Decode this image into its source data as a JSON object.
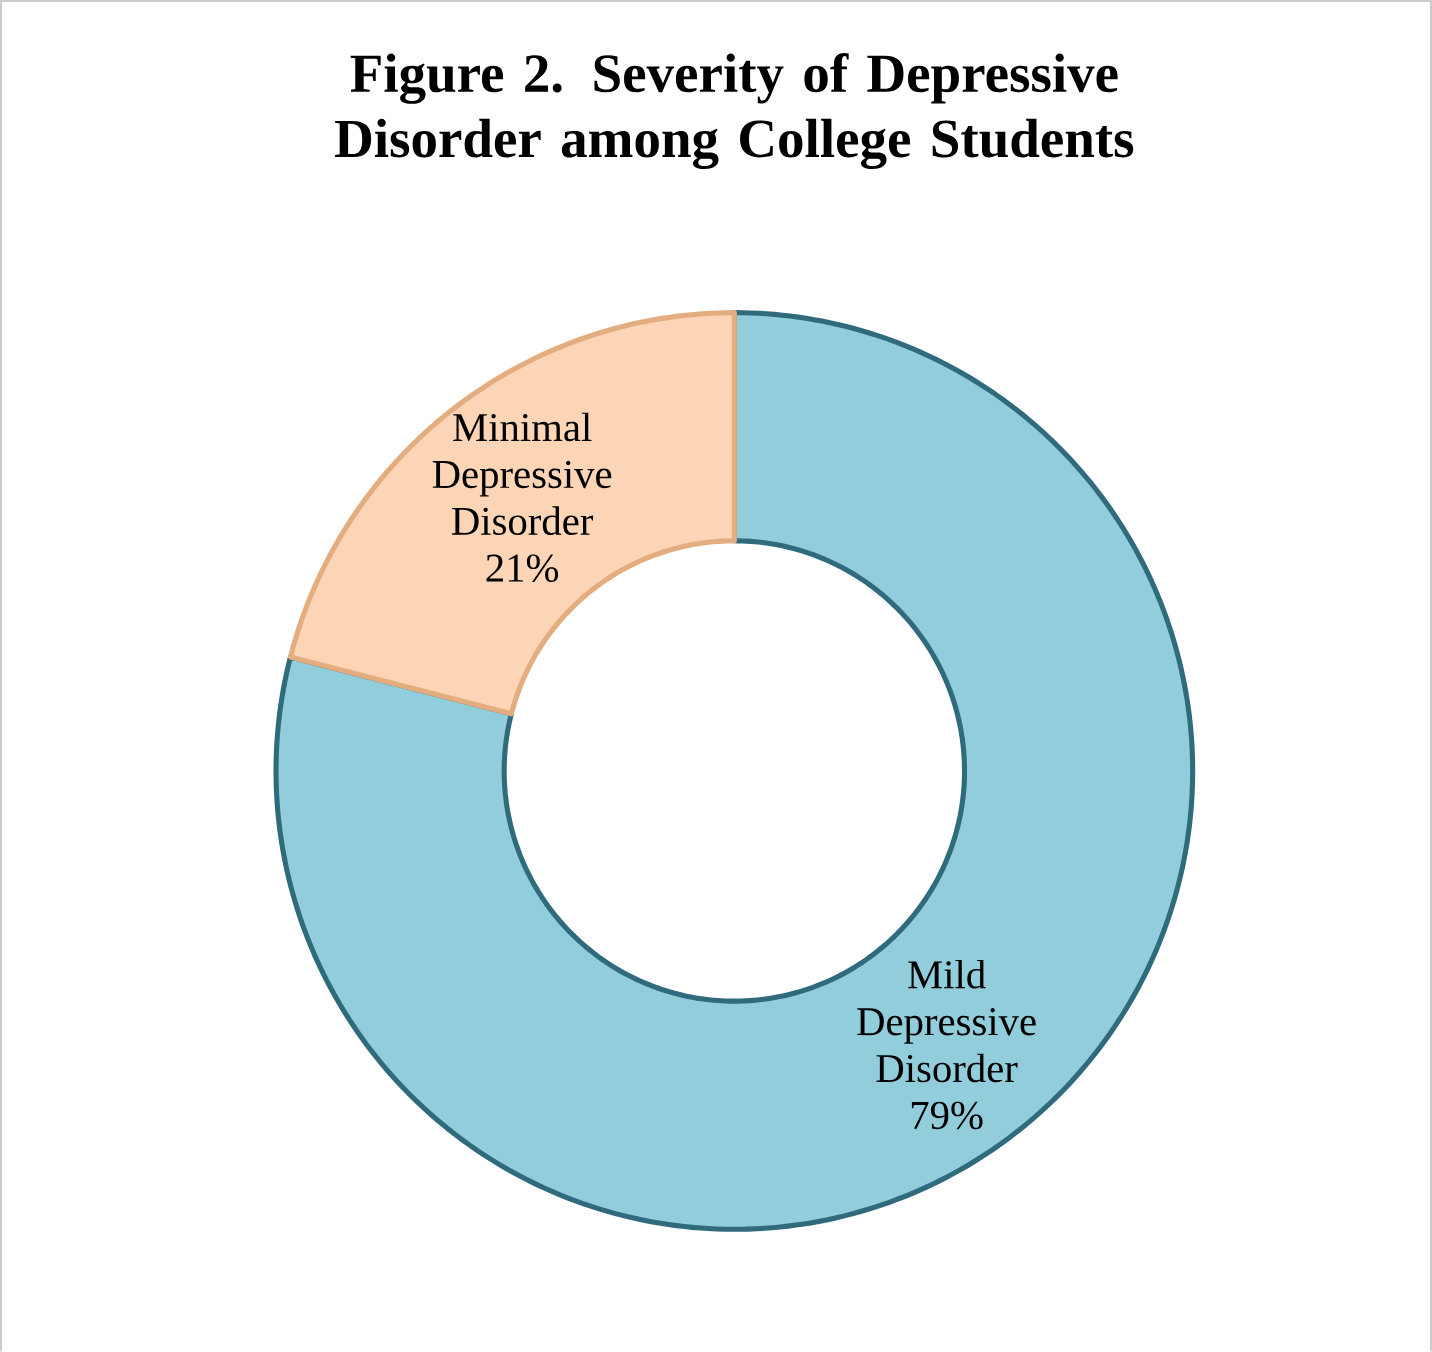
{
  "chart_data": {
    "type": "donut",
    "title": "Figure 2. Severity of Depressive Disorder among College Students",
    "categories": [
      "Mild Depressive Disorder",
      "Minimal Depressive Disorder"
    ],
    "values": [
      79,
      21
    ],
    "colors": [
      "#92cddc",
      "#fbd5b5"
    ],
    "value_labels": [
      "79%",
      "21%"
    ]
  }
}
